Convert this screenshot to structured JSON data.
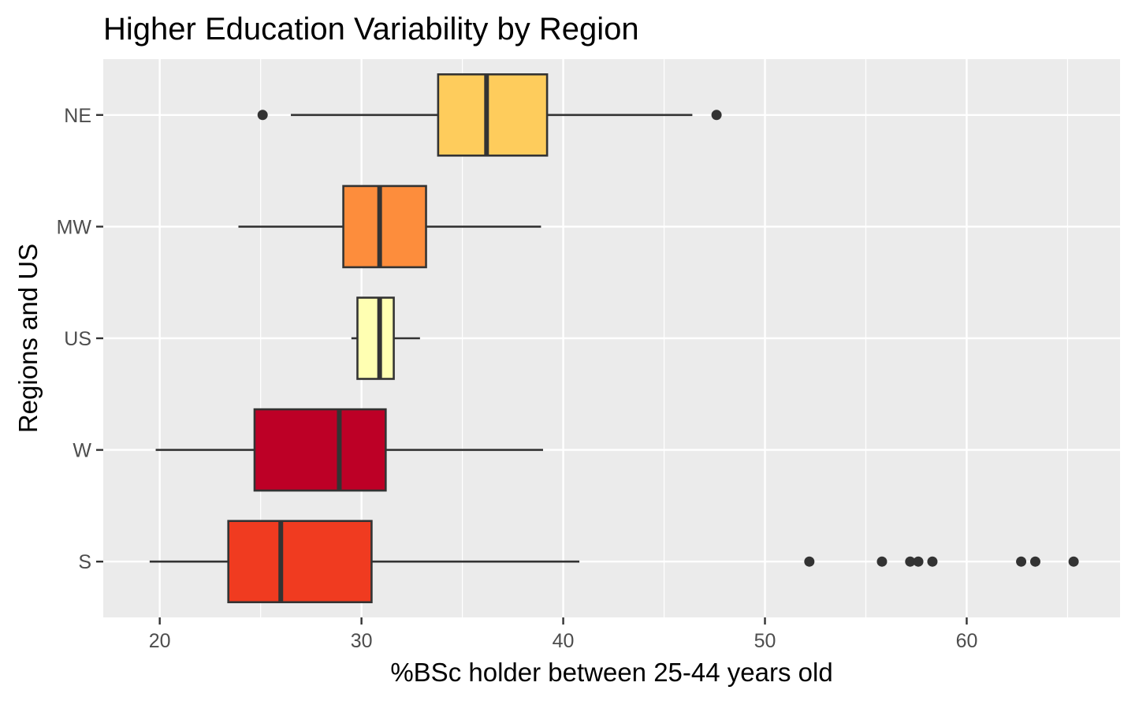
{
  "chart_data": {
    "type": "boxplot",
    "orientation": "horizontal",
    "title": "Higher Education Variability by Region",
    "xlabel": "%BSc holder between 25-44 years old",
    "ylabel": "Regions and US",
    "xlim": [
      17.2,
      67.6
    ],
    "x_ticks": [
      20,
      30,
      40,
      50,
      60
    ],
    "x_tick_labels": [
      "20",
      "30",
      "40",
      "50",
      "60"
    ],
    "categories": [
      "NE",
      "MW",
      "US",
      "W",
      "S"
    ],
    "boxes": [
      {
        "name": "NE",
        "fill": "#FECC5C",
        "whisker_low": 26.5,
        "q1": 33.8,
        "median": 36.2,
        "q3": 39.2,
        "whisker_high": 46.4,
        "outliers": [
          25.1,
          47.6
        ]
      },
      {
        "name": "MW",
        "fill": "#FD8D3C",
        "whisker_low": 23.9,
        "q1": 29.1,
        "median": 30.9,
        "q3": 33.2,
        "whisker_high": 38.9,
        "outliers": []
      },
      {
        "name": "US",
        "fill": "#FFFFB2",
        "whisker_low": 29.5,
        "q1": 29.8,
        "median": 30.9,
        "q3": 31.6,
        "whisker_high": 32.9,
        "outliers": []
      },
      {
        "name": "W",
        "fill": "#BD0026",
        "whisker_low": 19.8,
        "q1": 24.7,
        "median": 28.9,
        "q3": 31.2,
        "whisker_high": 39.0,
        "outliers": []
      },
      {
        "name": "S",
        "fill": "#F03B20",
        "whisker_low": 19.5,
        "q1": 23.4,
        "median": 26.0,
        "q3": 30.5,
        "whisker_high": 40.8,
        "outliers": [
          52.2,
          55.8,
          57.2,
          57.6,
          58.3,
          62.7,
          63.4,
          65.3
        ]
      }
    ],
    "colors": {
      "panel_background": "#EBEBEB",
      "grid_major": "#FFFFFF",
      "box_stroke": "#333333",
      "outlier": "#333333",
      "tick_text": "#4D4D4D"
    },
    "legend": "none"
  }
}
